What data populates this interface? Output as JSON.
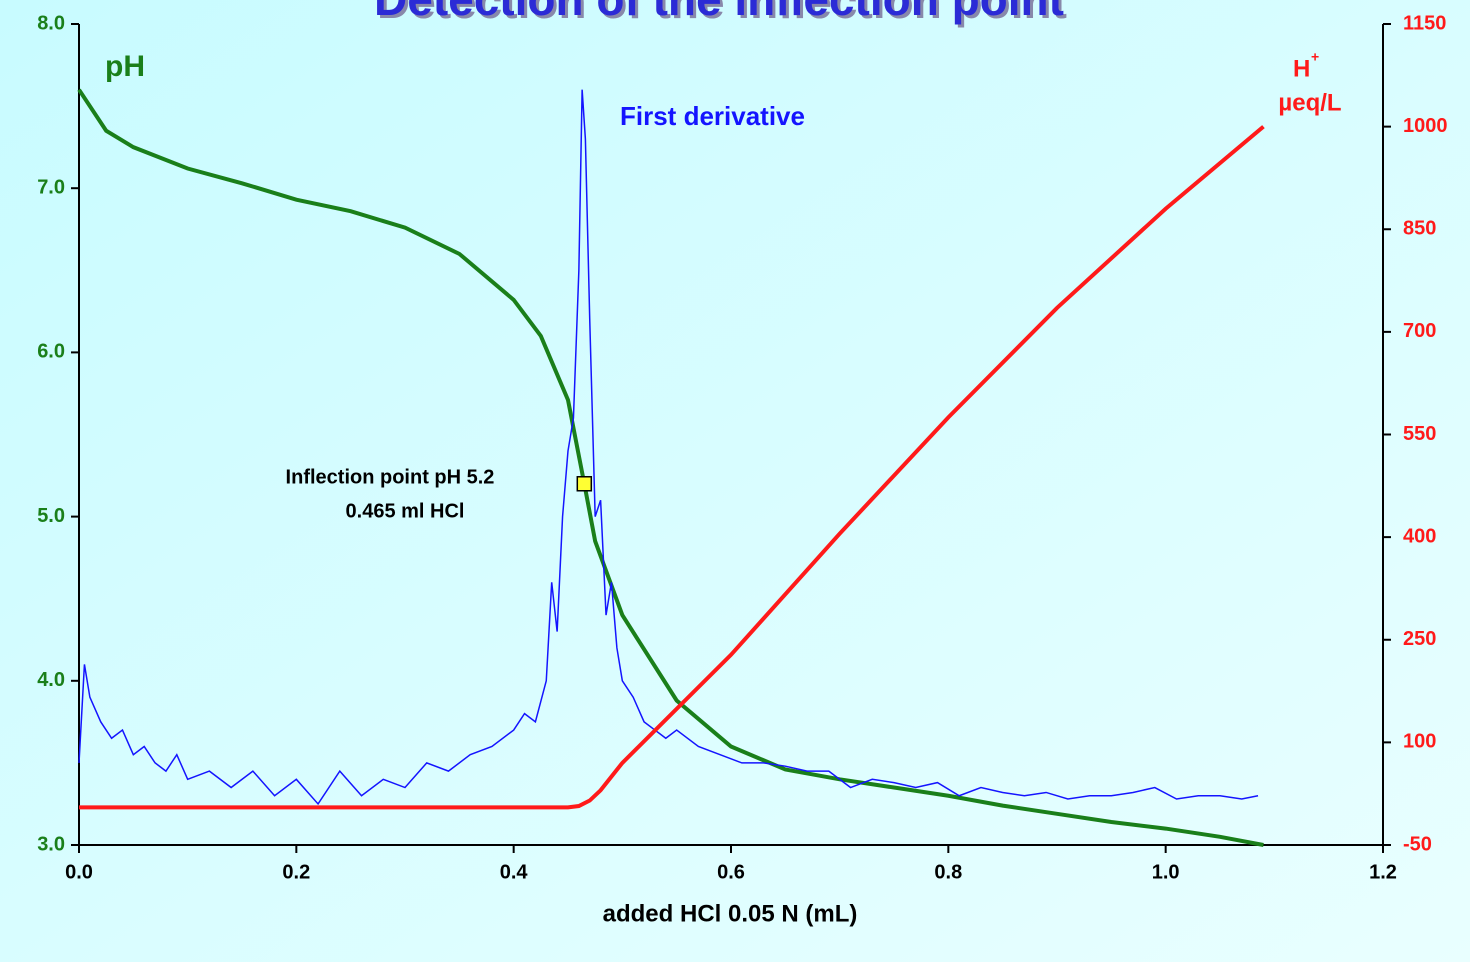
{
  "chart_data": {
    "type": "line",
    "title": "Detection of the inflection point",
    "x_label": "added HCl 0.05 N (mL)",
    "y_label": "pH",
    "y2_label": "µeq/L",
    "y2_label_ion": "H",
    "y2_label_charge": "+",
    "xlim": [
      0,
      1.2
    ],
    "xticks": [
      {
        "value": 0,
        "label": "0.0"
      },
      0.2,
      0.4,
      0.6,
      0.8,
      {
        "value": 1,
        "label": "1.0"
      },
      1.2
    ],
    "ylim": [
      3,
      8
    ],
    "yticks": [
      {
        "value": 3,
        "label": "3.0"
      },
      {
        "value": 4,
        "label": "4.0"
      },
      {
        "value": 5,
        "label": "5.0"
      },
      {
        "value": 6,
        "label": "6.0"
      },
      {
        "value": 7,
        "label": "7.0"
      },
      {
        "value": 8,
        "label": "8.0"
      }
    ],
    "y2lim": [
      -50,
      1150
    ],
    "y2ticks": [
      -50,
      100,
      250,
      400,
      550,
      700,
      850,
      1000,
      1150
    ],
    "series": [
      {
        "name": "pH",
        "color": "#1a7f1a",
        "axis": "y",
        "x": [
          0,
          0.025,
          0.05,
          0.1,
          0.15,
          0.2,
          0.25,
          0.3,
          0.35,
          0.4,
          0.425,
          0.45,
          0.465,
          0.475,
          0.5,
          0.55,
          0.6,
          0.65,
          0.7,
          0.75,
          0.8,
          0.85,
          0.9,
          0.95,
          1.0,
          1.05,
          1.09
        ],
        "values": [
          7.6,
          7.35,
          7.25,
          7.12,
          7.03,
          6.93,
          6.86,
          6.76,
          6.6,
          6.32,
          6.1,
          5.71,
          5.2,
          4.85,
          4.4,
          3.88,
          3.6,
          3.46,
          3.4,
          3.35,
          3.3,
          3.24,
          3.19,
          3.14,
          3.1,
          3.05,
          3.0
        ]
      },
      {
        "name": "First derivative",
        "color": "#1414ff",
        "axis": "y",
        "x": [
          0,
          0.005,
          0.01,
          0.02,
          0.03,
          0.04,
          0.05,
          0.06,
          0.07,
          0.08,
          0.09,
          0.1,
          0.12,
          0.14,
          0.16,
          0.18,
          0.2,
          0.22,
          0.24,
          0.26,
          0.28,
          0.3,
          0.32,
          0.34,
          0.36,
          0.38,
          0.4,
          0.41,
          0.42,
          0.43,
          0.435,
          0.44,
          0.445,
          0.45,
          0.455,
          0.46,
          0.463,
          0.466,
          0.47,
          0.475,
          0.48,
          0.485,
          0.49,
          0.495,
          0.5,
          0.51,
          0.52,
          0.53,
          0.54,
          0.55,
          0.57,
          0.59,
          0.61,
          0.63,
          0.65,
          0.67,
          0.69,
          0.71,
          0.73,
          0.75,
          0.77,
          0.79,
          0.81,
          0.83,
          0.85,
          0.87,
          0.89,
          0.91,
          0.93,
          0.95,
          0.97,
          0.99,
          1.01,
          1.03,
          1.05,
          1.07,
          1.085
        ],
        "values": [
          3.5,
          4.1,
          3.9,
          3.75,
          3.65,
          3.7,
          3.55,
          3.6,
          3.5,
          3.45,
          3.55,
          3.4,
          3.45,
          3.35,
          3.45,
          3.3,
          3.4,
          3.25,
          3.45,
          3.3,
          3.4,
          3.35,
          3.5,
          3.45,
          3.55,
          3.6,
          3.7,
          3.8,
          3.75,
          4.0,
          4.6,
          4.3,
          5.0,
          5.4,
          5.6,
          6.5,
          7.6,
          7.3,
          6.2,
          5.0,
          5.1,
          4.4,
          4.6,
          4.2,
          4.0,
          3.9,
          3.75,
          3.7,
          3.65,
          3.7,
          3.6,
          3.55,
          3.5,
          3.5,
          3.48,
          3.45,
          3.45,
          3.35,
          3.4,
          3.38,
          3.35,
          3.38,
          3.3,
          3.35,
          3.32,
          3.3,
          3.32,
          3.28,
          3.3,
          3.3,
          3.32,
          3.35,
          3.28,
          3.3,
          3.3,
          3.28,
          3.3
        ]
      },
      {
        "name": "H+",
        "color": "#ff1a1a",
        "axis": "y2",
        "x": [
          0,
          0.45,
          0.46,
          0.47,
          0.48,
          0.5,
          0.6,
          0.7,
          0.8,
          0.9,
          1.0,
          1.09
        ],
        "values": [
          5,
          5,
          7,
          15,
          30,
          70,
          228,
          405,
          575,
          735,
          880,
          1000
        ]
      }
    ],
    "inflection": {
      "x": 0.465,
      "y": 5.2,
      "color": "#ffff33",
      "label": "Inflection point pH 5.2",
      "label2": "0.465 ml HCl"
    }
  }
}
